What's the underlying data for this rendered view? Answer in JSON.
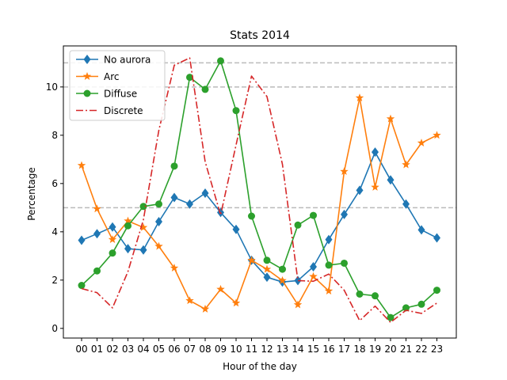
{
  "chart_data": {
    "type": "line",
    "title": "Stats 2014",
    "xlabel": "Hour of the day",
    "ylabel": "Percentage",
    "ylim": [
      -0.4,
      11.7
    ],
    "yticks": [
      0,
      2,
      4,
      6,
      8,
      10
    ],
    "grid": false,
    "legend_position": "top-left",
    "categories": [
      "00",
      "01",
      "02",
      "03",
      "04",
      "05",
      "06",
      "07",
      "08",
      "09",
      "10",
      "11",
      "12",
      "13",
      "14",
      "15",
      "16",
      "17",
      "18",
      "19",
      "20",
      "21",
      "22",
      "23"
    ],
    "reference_lines": [
      5,
      10,
      11
    ],
    "reference_line_color": "#bbbbbb",
    "series": [
      {
        "name": "No aurora",
        "color": "#1f77b4",
        "marker": "diamond",
        "linestyle": "solid",
        "values": [
          3.65,
          3.92,
          4.2,
          3.3,
          3.25,
          4.42,
          5.42,
          5.15,
          5.6,
          4.8,
          4.1,
          2.82,
          2.12,
          1.92,
          1.98,
          2.55,
          3.68,
          4.72,
          5.72,
          7.3,
          6.15,
          5.15,
          4.08,
          3.75
        ]
      },
      {
        "name": "Arc",
        "color": "#ff7f0e",
        "marker": "star",
        "linestyle": "solid",
        "values": [
          6.75,
          4.95,
          3.68,
          4.45,
          4.18,
          3.4,
          2.5,
          1.15,
          0.8,
          1.62,
          1.05,
          2.82,
          2.45,
          1.98,
          0.98,
          2.15,
          1.55,
          6.5,
          9.55,
          5.85,
          8.68,
          6.78,
          7.68,
          8.0
        ]
      },
      {
        "name": "Diffuse",
        "color": "#2ca02c",
        "marker": "circle",
        "linestyle": "solid",
        "values": [
          1.78,
          2.38,
          3.12,
          4.25,
          5.05,
          5.15,
          6.72,
          10.4,
          9.9,
          11.08,
          9.02,
          4.65,
          2.82,
          2.45,
          4.28,
          4.68,
          2.62,
          2.7,
          1.42,
          1.35,
          0.45,
          0.85,
          1.0,
          1.58
        ]
      },
      {
        "name": "Discrete",
        "color": "#d62728",
        "marker": "none",
        "linestyle": "dashdot",
        "values": [
          1.65,
          1.48,
          0.85,
          2.35,
          4.5,
          8.2,
          10.9,
          11.2,
          6.9,
          4.7,
          7.6,
          10.45,
          9.6,
          6.8,
          1.98,
          1.95,
          2.25,
          1.58,
          0.32,
          0.92,
          0.25,
          0.75,
          0.62,
          1.05
        ]
      }
    ]
  }
}
